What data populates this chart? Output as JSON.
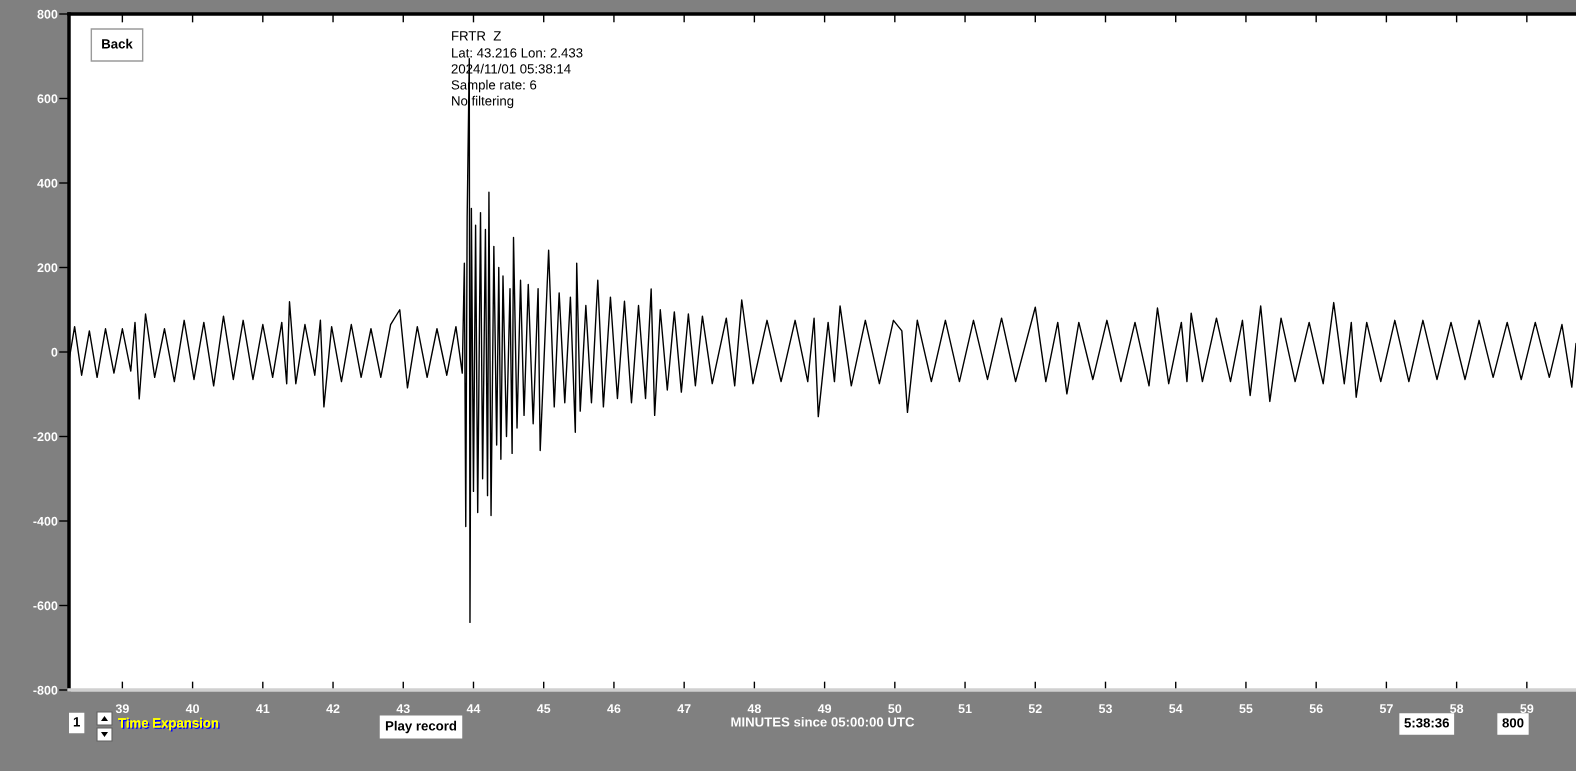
{
  "chart_data": {
    "type": "line",
    "xlabel": "MINUTES since 05:00:00 UTC",
    "annotations": [
      "FRTR  Z",
      "Lat: 43.216 Lon: 2.433",
      "2024/11/01 05:38:14",
      "Sample rate: 6",
      "No filtering",
      "Back",
      "1",
      "Time Expansion",
      "Play record",
      "5:38:36",
      "800"
    ],
    "series": [
      {
        "color": "#000000",
        "x": [
          38.24,
          38.32,
          38.42,
          38.53,
          38.64,
          38.76,
          38.88,
          39.0,
          39.12,
          39.18,
          39.24,
          39.33,
          39.46,
          39.6,
          39.74,
          39.88,
          40.02,
          40.16,
          40.3,
          40.44,
          40.58,
          40.72,
          40.86,
          41.0,
          41.14,
          41.27,
          41.34,
          41.38,
          41.47,
          41.6,
          41.74,
          41.82,
          41.87,
          41.98,
          42.12,
          42.26,
          42.4,
          42.54,
          42.68,
          42.82,
          42.95,
          43.06,
          43.2,
          43.34,
          43.48,
          43.62,
          43.75,
          43.84,
          43.87,
          43.89,
          43.91,
          43.94,
          43.95,
          43.97,
          44.0,
          44.03,
          44.06,
          44.1,
          44.13,
          44.17,
          44.2,
          44.22,
          44.25,
          44.29,
          44.33,
          44.36,
          44.39,
          44.42,
          44.47,
          44.52,
          44.55,
          44.57,
          44.62,
          44.67,
          44.72,
          44.78,
          44.85,
          44.92,
          44.95,
          45.07,
          45.15,
          45.22,
          45.3,
          45.38,
          45.45,
          45.47,
          45.52,
          45.6,
          45.68,
          45.77,
          45.85,
          45.95,
          46.05,
          46.15,
          46.25,
          46.35,
          46.45,
          46.53,
          46.58,
          46.66,
          46.76,
          46.86,
          46.96,
          47.06,
          47.16,
          47.26,
          47.4,
          47.6,
          47.72,
          47.82,
          47.98,
          48.18,
          48.38,
          48.58,
          48.76,
          48.85,
          48.91,
          49.05,
          49.14,
          49.22,
          49.38,
          49.58,
          49.78,
          49.98,
          50.1,
          50.18,
          50.32,
          50.52,
          50.72,
          50.92,
          51.12,
          51.32,
          51.52,
          51.72,
          52.0,
          52.15,
          52.32,
          52.45,
          52.62,
          52.82,
          53.02,
          53.22,
          53.42,
          53.62,
          53.74,
          53.9,
          54.08,
          54.16,
          54.22,
          54.38,
          54.58,
          54.78,
          54.95,
          55.06,
          55.21,
          55.34,
          55.5,
          55.7,
          55.9,
          56.1,
          56.25,
          56.4,
          56.5,
          56.57,
          56.72,
          56.92,
          57.12,
          57.32,
          57.52,
          57.72,
          57.92,
          58.12,
          58.32,
          58.52,
          58.72,
          58.92,
          59.12,
          59.32,
          59.5,
          59.64,
          59.7
        ],
        "values": [
          -20,
          60,
          -55,
          50,
          -60,
          55,
          -50,
          55,
          -45,
          70,
          -111,
          90,
          -60,
          55,
          -70,
          75,
          -65,
          70,
          -80,
          85,
          -65,
          75,
          -65,
          65,
          -60,
          70,
          -75,
          119,
          -75,
          65,
          -55,
          75,
          -130,
          60,
          -70,
          65,
          -60,
          55,
          -60,
          65,
          100,
          -85,
          60,
          -60,
          55,
          -55,
          60,
          -50,
          210,
          -413,
          320,
          694,
          -640,
          340,
          -330,
          300,
          -380,
          330,
          -300,
          290,
          -340,
          378,
          -387,
          250,
          -220,
          200,
          -254,
          180,
          -200,
          150,
          -240,
          271,
          -180,
          170,
          -150,
          160,
          -170,
          150,
          -233,
          241,
          -130,
          140,
          -120,
          130,
          -190,
          210,
          -140,
          110,
          -120,
          170,
          -130,
          130,
          -110,
          120,
          -120,
          110,
          -110,
          149,
          -150,
          100,
          -90,
          95,
          -95,
          90,
          -80,
          85,
          -75,
          80,
          -80,
          123,
          -75,
          75,
          -70,
          75,
          -70,
          80,
          -153,
          70,
          -70,
          109,
          -80,
          75,
          -75,
          75,
          50,
          -143,
          75,
          -70,
          75,
          -70,
          75,
          -65,
          80,
          -70,
          106,
          -70,
          70,
          -99,
          70,
          -65,
          75,
          -70,
          70,
          -80,
          104,
          -75,
          70,
          -70,
          92,
          -70,
          80,
          -70,
          75,
          -103,
          109,
          -117,
          80,
          -70,
          70,
          -75,
          117,
          -75,
          70,
          -107,
          70,
          -70,
          75,
          -70,
          75,
          -65,
          70,
          -65,
          75,
          -60,
          70,
          -65,
          70,
          -60,
          65,
          -83,
          20
        ]
      }
    ],
    "xlim": [
      38.24,
      59.7
    ],
    "ylim": [
      -800,
      800
    ],
    "xticks": [
      39,
      40,
      41,
      42,
      43,
      44,
      45,
      46,
      47,
      48,
      49,
      50,
      51,
      52,
      53,
      54,
      55,
      56,
      57,
      58,
      59
    ],
    "yticks": [
      -800,
      -600,
      -400,
      -200,
      0,
      200,
      400,
      600,
      800
    ],
    "grid": false
  }
}
